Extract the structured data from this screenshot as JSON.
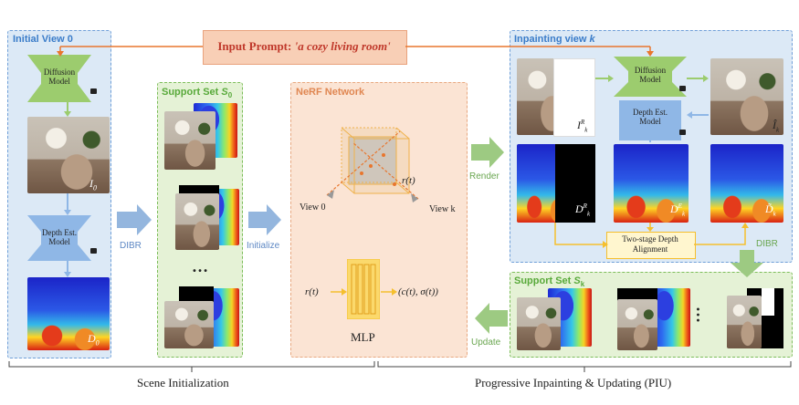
{
  "prompt": {
    "prefix": "Input Prompt: ",
    "text": "'a cozy living room'"
  },
  "panels": {
    "initial_view": "Initial View 0",
    "support_set_0": "Support Set",
    "support_set_0_sym": "S",
    "support_set_0_sub": "0",
    "nerf": "NeRF Network",
    "inpainting_view": "Inpainting view ",
    "inpainting_view_k": "k",
    "support_set_k": "Support Set",
    "support_set_k_sym": "S",
    "support_set_k_sub": "k"
  },
  "models": {
    "diffusion_left": "Diffusion Model",
    "depth_left": "Depth Est. Model",
    "diffusion_right": "Diffusion Model",
    "depth_right": "Depth Est. Model",
    "alignment": "Two-stage Depth Alignment",
    "mlp": "MLP"
  },
  "labels": {
    "I0": "I",
    "I0_sub": "0",
    "D0": "D",
    "D0_sub": "0",
    "IkR": "I",
    "IkR_sub": "k",
    "IkR_sup": "R",
    "Ik_hat": "Î",
    "Ik_hat_sub": "k",
    "DkR": "D",
    "DkR_sub": "k",
    "DkR_sup": "R",
    "DkE": "D",
    "DkE_sub": "k",
    "DkE_sup": "E",
    "Dk_tilde": "D̃",
    "Dk_tilde_sub": "k",
    "view0": "View 0",
    "viewk": "View k",
    "rt": "r(t)",
    "mlp_in": "r(t)",
    "mlp_out": "(c(t), σ(t))",
    "dots": "…"
  },
  "steps": {
    "dibr_left": "DIBR",
    "initialize": "Initialize",
    "render": "Render",
    "dibr_right": "DIBR",
    "update": "Update"
  },
  "phases": {
    "left": "Scene Initialization",
    "right": "Progressive Inpainting & Updating (PIU)"
  },
  "colors": {
    "blue_panel": "#dce9f6",
    "green_panel": "#e5f2d6",
    "nerf_panel": "#fbe4d4",
    "model_green": "#9ccc6e",
    "model_blue": "#8fb7e6",
    "prompt_red": "#c0392b",
    "arrow_orange": "#e8762e",
    "arrow_blue": "#94b6de",
    "arrow_green": "#9dca82",
    "yellow": "#f5bf2e"
  }
}
